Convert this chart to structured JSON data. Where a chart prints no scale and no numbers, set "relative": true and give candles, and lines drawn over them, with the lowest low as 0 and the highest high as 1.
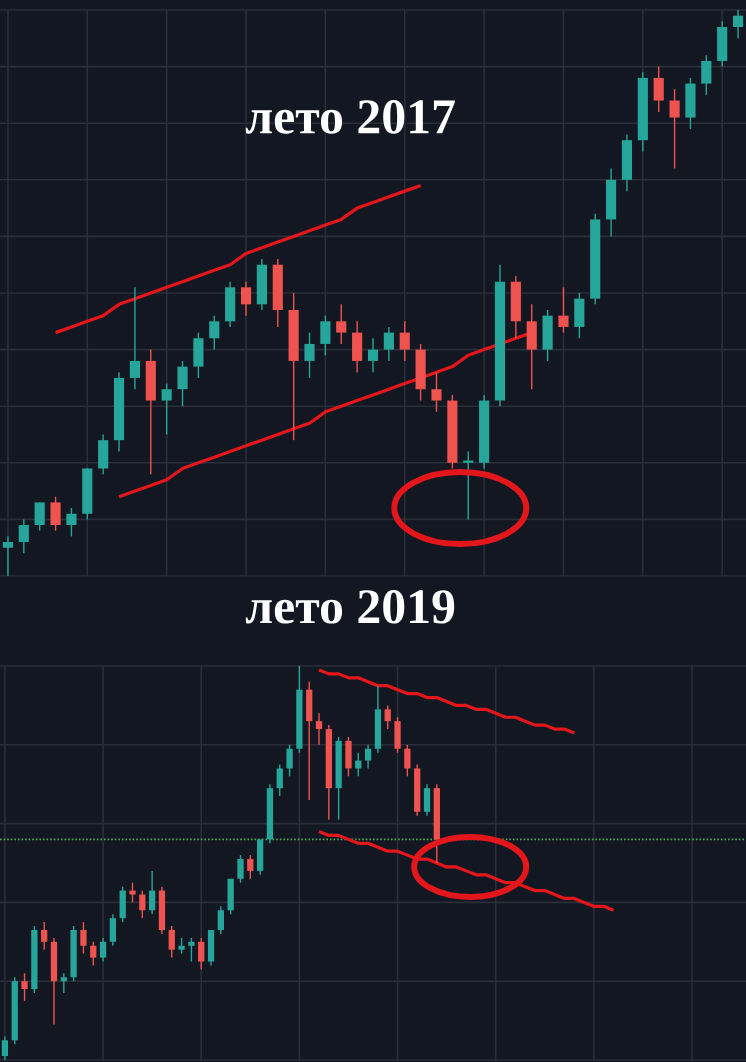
{
  "chart_data": [
    {
      "type": "candlestick",
      "title": "лето 2017",
      "relative": true,
      "grid": true,
      "tick_labels": false,
      "categories": [
        null,
        null,
        null,
        null,
        null,
        null,
        null,
        null,
        null,
        null,
        null,
        null,
        null,
        null,
        null,
        null,
        null,
        null,
        null,
        null,
        null,
        null,
        null,
        null,
        null,
        null,
        null,
        null,
        null,
        null,
        null,
        null,
        null,
        null,
        null,
        null,
        null,
        null,
        null,
        null,
        null,
        null,
        null,
        null,
        null,
        null,
        null
      ],
      "ohlc": [
        [
          0.05,
          0.07,
          0,
          0.06
        ],
        [
          0.06,
          0.1,
          0.04,
          0.09
        ],
        [
          0.09,
          0.13,
          0.08,
          0.13
        ],
        [
          0.13,
          0.14,
          0.08,
          0.09
        ],
        [
          0.09,
          0.12,
          0.07,
          0.11
        ],
        [
          0.11,
          0.19,
          0.1,
          0.19
        ],
        [
          0.19,
          0.25,
          0.18,
          0.24
        ],
        [
          0.24,
          0.36,
          0.22,
          0.35
        ],
        [
          0.35,
          0.51,
          0.33,
          0.38
        ],
        [
          0.38,
          0.4,
          0.18,
          0.31
        ],
        [
          0.31,
          0.34,
          0.25,
          0.33
        ],
        [
          0.33,
          0.38,
          0.3,
          0.37
        ],
        [
          0.37,
          0.43,
          0.35,
          0.42
        ],
        [
          0.42,
          0.46,
          0.4,
          0.45
        ],
        [
          0.45,
          0.52,
          0.44,
          0.51
        ],
        [
          0.51,
          0.52,
          0.46,
          0.48
        ],
        [
          0.48,
          0.56,
          0.47,
          0.55
        ],
        [
          0.55,
          0.56,
          0.44,
          0.47
        ],
        [
          0.47,
          0.5,
          0.24,
          0.38
        ],
        [
          0.38,
          0.43,
          0.35,
          0.41
        ],
        [
          0.41,
          0.46,
          0.39,
          0.45
        ],
        [
          0.45,
          0.48,
          0.41,
          0.43
        ],
        [
          0.43,
          0.45,
          0.36,
          0.38
        ],
        [
          0.38,
          0.42,
          0.36,
          0.4
        ],
        [
          0.4,
          0.44,
          0.38,
          0.43
        ],
        [
          0.43,
          0.45,
          0.38,
          0.4
        ],
        [
          0.4,
          0.41,
          0.31,
          0.33
        ],
        [
          0.33,
          0.36,
          0.29,
          0.31
        ],
        [
          0.31,
          0.32,
          0.19,
          0.2
        ],
        [
          0.2,
          0.22,
          0.1,
          0.2
        ],
        [
          0.2,
          0.32,
          0.19,
          0.31
        ],
        [
          0.31,
          0.55,
          0.3,
          0.52
        ],
        [
          0.52,
          0.53,
          0.42,
          0.45
        ],
        [
          0.45,
          0.48,
          0.33,
          0.4
        ],
        [
          0.4,
          0.47,
          0.38,
          0.46
        ],
        [
          0.46,
          0.51,
          0.43,
          0.44
        ],
        [
          0.44,
          0.5,
          0.42,
          0.49
        ],
        [
          0.49,
          0.64,
          0.48,
          0.63
        ],
        [
          0.63,
          0.72,
          0.6,
          0.7
        ],
        [
          0.7,
          0.78,
          0.68,
          0.77
        ],
        [
          0.77,
          0.89,
          0.75,
          0.88
        ],
        [
          0.88,
          0.9,
          0.82,
          0.84
        ],
        [
          0.84,
          0.86,
          0.72,
          0.81
        ],
        [
          0.81,
          0.88,
          0.79,
          0.87
        ],
        [
          0.87,
          0.92,
          0.85,
          0.91
        ],
        [
          0.91,
          0.98,
          0.9,
          0.97
        ],
        [
          0.97,
          1,
          0.95,
          0.99
        ]
      ],
      "series": [
        {
          "type": "line",
          "color": "#e3161b",
          "values": [
            null,
            null,
            null,
            0.43,
            0.44,
            0.45,
            0.46,
            0.48,
            0.49,
            0.5,
            0.51,
            0.52,
            0.53,
            0.54,
            0.55,
            0.57,
            0.58,
            0.59,
            0.6,
            0.61,
            0.62,
            0.63,
            0.65,
            0.66,
            0.67,
            0.68,
            0.69,
            null,
            null,
            null,
            null,
            null,
            null,
            null,
            null,
            null,
            null,
            null,
            null,
            null,
            null,
            null,
            null,
            null,
            null,
            null,
            null
          ]
        },
        {
          "type": "line",
          "color": "#e3161b",
          "values": [
            null,
            null,
            null,
            null,
            null,
            null,
            null,
            0.14,
            0.15,
            0.16,
            0.17,
            0.19,
            0.2,
            0.21,
            0.22,
            0.23,
            0.24,
            0.25,
            0.26,
            0.27,
            0.29,
            0.3,
            0.31,
            0.32,
            0.33,
            0.34,
            0.35,
            0.36,
            0.37,
            0.39,
            0.4,
            0.41,
            0.42,
            0.43,
            null,
            null,
            null,
            null,
            null,
            null,
            null,
            null,
            null,
            null,
            null,
            null,
            null
          ]
        }
      ]
    },
    {
      "type": "candlestick",
      "title": "лето 2019",
      "relative": true,
      "grid": true,
      "tick_labels": false,
      "categories": [
        null,
        null,
        null,
        null,
        null,
        null,
        null,
        null,
        null,
        null,
        null,
        null,
        null,
        null,
        null,
        null,
        null,
        null,
        null,
        null,
        null,
        null,
        null,
        null,
        null,
        null,
        null,
        null,
        null,
        null,
        null,
        null,
        null,
        null,
        null,
        null,
        null,
        null,
        null,
        null,
        null,
        null,
        null,
        null,
        null,
        null,
        null,
        null,
        null,
        null,
        null,
        null,
        null,
        null,
        null,
        null,
        null,
        null,
        null,
        null,
        null,
        null,
        null,
        null,
        null,
        null,
        null,
        null,
        null,
        null,
        null,
        null,
        null,
        null,
        null,
        null
      ],
      "ohlc": [
        [
          0.01,
          0.06,
          0,
          0.05
        ],
        [
          0.05,
          0.21,
          0.04,
          0.2
        ],
        [
          0.2,
          0.22,
          0.15,
          0.18
        ],
        [
          0.18,
          0.34,
          0.17,
          0.33
        ],
        [
          0.33,
          0.35,
          0.28,
          0.3
        ],
        [
          0.3,
          0.31,
          0.09,
          0.2
        ],
        [
          0.2,
          0.22,
          0.17,
          0.21
        ],
        [
          0.21,
          0.34,
          0.2,
          0.33
        ],
        [
          0.33,
          0.35,
          0.27,
          0.29
        ],
        [
          0.29,
          0.3,
          0.24,
          0.26
        ],
        [
          0.26,
          0.31,
          0.25,
          0.3
        ],
        [
          0.3,
          0.37,
          0.29,
          0.36
        ],
        [
          0.36,
          0.44,
          0.35,
          0.43
        ],
        [
          0.43,
          0.45,
          0.4,
          0.42
        ],
        [
          0.42,
          0.43,
          0.36,
          0.38
        ],
        [
          0.38,
          0.48,
          0.37,
          0.43
        ],
        [
          0.43,
          0.44,
          0.32,
          0.33
        ],
        [
          0.33,
          0.34,
          0.26,
          0.28
        ],
        [
          0.28,
          0.31,
          0.27,
          0.29
        ],
        [
          0.29,
          0.31,
          0.25,
          0.3
        ],
        [
          0.3,
          0.31,
          0.23,
          0.25
        ],
        [
          0.25,
          0.33,
          0.24,
          0.33
        ],
        [
          0.33,
          0.39,
          0.32,
          0.38
        ],
        [
          0.38,
          0.46,
          0.37,
          0.46
        ],
        [
          0.46,
          0.52,
          0.45,
          0.51
        ],
        [
          0.51,
          0.52,
          0.46,
          0.48
        ],
        [
          0.48,
          0.56,
          0.47,
          0.56
        ],
        [
          0.56,
          0.7,
          0.55,
          0.69
        ],
        [
          0.69,
          0.75,
          0.67,
          0.74
        ],
        [
          0.74,
          0.8,
          0.72,
          0.79
        ],
        [
          0.79,
          1,
          0.78,
          0.94
        ],
        [
          0.94,
          0.96,
          0.66,
          0.86
        ],
        [
          0.86,
          0.88,
          0.8,
          0.84
        ],
        [
          0.84,
          0.85,
          0.61,
          0.69
        ],
        [
          0.69,
          0.82,
          0.61,
          0.81
        ],
        [
          0.81,
          0.82,
          0.72,
          0.74
        ],
        [
          0.74,
          0.78,
          0.72,
          0.76
        ],
        [
          0.76,
          0.8,
          0.74,
          0.79
        ],
        [
          0.79,
          0.95,
          0.78,
          0.89
        ],
        [
          0.89,
          0.9,
          0.84,
          0.86
        ],
        [
          0.86,
          0.87,
          0.78,
          0.79
        ],
        [
          0.79,
          0.8,
          0.72,
          0.74
        ],
        [
          0.74,
          0.75,
          0.62,
          0.63
        ],
        [
          0.63,
          0.7,
          0.62,
          0.69
        ],
        [
          0.69,
          0.7,
          0.5,
          0.56
        ],
        null,
        null,
        null,
        null,
        null,
        null,
        null,
        null,
        null,
        null,
        null,
        null,
        null,
        null,
        null,
        null,
        null,
        null,
        null,
        null,
        null,
        null,
        null,
        null,
        null,
        null,
        null,
        null,
        null,
        null,
        null
      ],
      "ref_lines": [
        {
          "axis": "y",
          "value": 0.56,
          "color": "#4caf50",
          "line_style": "dotted"
        }
      ],
      "series": [
        {
          "type": "line",
          "color": "#e3161b",
          "values": [
            null,
            null,
            null,
            null,
            null,
            null,
            null,
            null,
            null,
            null,
            null,
            null,
            null,
            null,
            null,
            null,
            null,
            null,
            null,
            null,
            null,
            null,
            null,
            null,
            null,
            null,
            null,
            null,
            null,
            null,
            null,
            null,
            0.99,
            0.98,
            0.98,
            0.97,
            0.97,
            0.96,
            0.95,
            0.95,
            0.94,
            0.93,
            0.93,
            0.92,
            0.92,
            0.91,
            0.9,
            0.9,
            0.89,
            0.89,
            0.88,
            0.87,
            0.87,
            0.86,
            0.85,
            0.85,
            0.84,
            0.84,
            0.83,
            null,
            null,
            null,
            null,
            null,
            null,
            null,
            null,
            null,
            null,
            null,
            null,
            null,
            null,
            null,
            null,
            null
          ]
        },
        {
          "type": "line",
          "color": "#e3161b",
          "values": [
            null,
            null,
            null,
            null,
            null,
            null,
            null,
            null,
            null,
            null,
            null,
            null,
            null,
            null,
            null,
            null,
            null,
            null,
            null,
            null,
            null,
            null,
            null,
            null,
            null,
            null,
            null,
            null,
            null,
            null,
            null,
            null,
            0.58,
            0.57,
            0.57,
            0.56,
            0.55,
            0.55,
            0.54,
            0.53,
            0.53,
            0.52,
            0.51,
            0.51,
            0.5,
            0.49,
            0.49,
            0.48,
            0.47,
            0.47,
            0.46,
            0.45,
            0.45,
            0.44,
            0.43,
            0.43,
            0.42,
            0.41,
            0.41,
            0.4,
            0.39,
            0.39,
            0.38,
            null,
            null,
            null,
            null,
            null,
            null,
            null,
            null,
            null,
            null,
            null,
            null,
            null
          ]
        }
      ]
    }
  ]
}
